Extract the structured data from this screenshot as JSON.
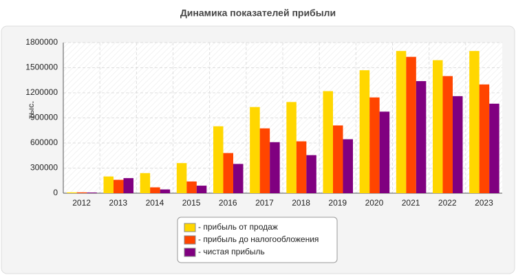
{
  "chart_data": {
    "type": "bar",
    "title": "Динамика показателей прибыли",
    "y_label": "тыс.",
    "categories": [
      "2012",
      "2013",
      "2014",
      "2015",
      "2016",
      "2017",
      "2018",
      "2019",
      "2020",
      "2021",
      "2022",
      "2023"
    ],
    "series": [
      {
        "name": "- прибыль от продаж",
        "color": "#ffd700",
        "values": [
          10000,
          200000,
          240000,
          360000,
          800000,
          1030000,
          1090000,
          1220000,
          1470000,
          1700000,
          1590000,
          1700000
        ]
      },
      {
        "name": "- прибыль до налогообложения",
        "color": "#ff4500",
        "values": [
          10000,
          160000,
          70000,
          140000,
          480000,
          775000,
          620000,
          810000,
          1145000,
          1630000,
          1400000,
          1300000
        ]
      },
      {
        "name": "- чистая прибыль",
        "color": "#800080",
        "values": [
          8000,
          180000,
          45000,
          90000,
          350000,
          610000,
          455000,
          645000,
          975000,
          1340000,
          1160000,
          1070000
        ]
      }
    ],
    "ylim": [
      0,
      1800000
    ],
    "yticks": [
      0,
      300000,
      600000,
      900000,
      1200000,
      1500000,
      1800000
    ],
    "grid": true
  }
}
